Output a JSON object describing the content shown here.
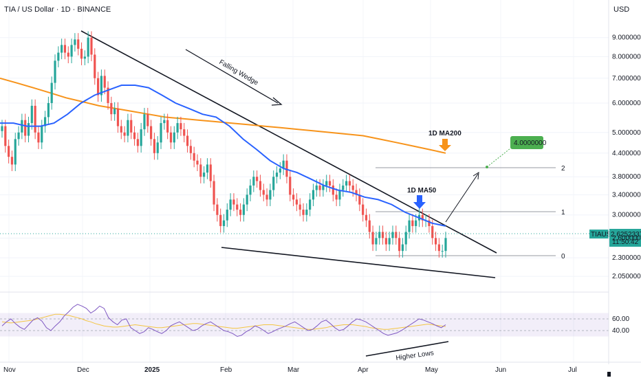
{
  "header": {
    "symbol_title": "TIA / US Dollar · 1D · BINANCE",
    "currency": "USD"
  },
  "chart_data": {
    "type": "candlestick",
    "symbol": "TIAUSD",
    "price_scale": "log",
    "ylim": [
      1.9,
      10.0
    ],
    "price_ticks": [
      "9.0000000",
      "8.0000000",
      "7.0000000",
      "6.0000000",
      "5.0000000",
      "4.4000000",
      "3.8000000",
      "3.4000000",
      "3.0000000",
      "2.6000000",
      "2.3000000",
      "2.0500000"
    ],
    "time_ticks": [
      "Nov",
      "Dec",
      "2025",
      "Feb",
      "Mar",
      "Apr",
      "May",
      "Jun",
      "Jul"
    ],
    "current_price": {
      "label": "TIAUSD",
      "value": "2.6252337",
      "countdown": "11:50:42"
    },
    "close_series": [
      5.2,
      4.6,
      4.3,
      4.1,
      4.8,
      5.0,
      5.4,
      4.9,
      5.3,
      5.9,
      5.0,
      4.7,
      5.2,
      5.5,
      6.0,
      6.8,
      7.8,
      8.2,
      8.6,
      8.2,
      8.0,
      8.6,
      8.9,
      8.4,
      7.9,
      8.0,
      9.0,
      8.1,
      7.0,
      6.3,
      7.1,
      6.6,
      6.0,
      5.6,
      5.8,
      5.2,
      5.0,
      4.9,
      5.4,
      5.0,
      4.8,
      4.6,
      5.1,
      5.6,
      5.2,
      4.8,
      4.4,
      4.7,
      5.3,
      5.4,
      5.0,
      4.7,
      5.0,
      5.3,
      5.1,
      4.9,
      4.6,
      4.4,
      4.2,
      4.1,
      3.8,
      3.9,
      4.1,
      3.7,
      3.2,
      3.0,
      2.8,
      2.9,
      3.1,
      3.3,
      3.2,
      3.1,
      3.0,
      3.2,
      3.4,
      3.6,
      3.8,
      3.7,
      3.5,
      3.4,
      3.3,
      3.5,
      3.8,
      3.9,
      4.0,
      4.2,
      3.8,
      3.4,
      3.3,
      3.2,
      3.1,
      3.0,
      3.1,
      3.3,
      3.5,
      3.6,
      3.5,
      3.6,
      3.7,
      3.6,
      3.4,
      3.3,
      3.5,
      3.6,
      3.7,
      3.6,
      3.5,
      3.4,
      3.2,
      3.0,
      2.9,
      2.7,
      2.5,
      2.6,
      2.7,
      2.6,
      2.5,
      2.6,
      2.7,
      2.6,
      2.4,
      2.5,
      2.7,
      2.9,
      2.8,
      2.9,
      3.0,
      2.9,
      2.9,
      2.8,
      2.6,
      2.5,
      2.4,
      2.4,
      2.6
    ],
    "ma200": {
      "label": "1D MA200",
      "values": [
        7.0,
        6.8,
        6.6,
        6.4,
        6.2,
        6.05,
        5.9,
        5.8,
        5.7,
        5.6,
        5.5,
        5.45,
        5.4,
        5.35,
        5.3,
        5.25,
        5.2,
        5.15,
        5.1,
        5.05,
        5.0,
        4.95,
        4.9,
        4.8,
        4.7,
        4.6,
        4.5,
        4.4
      ]
    },
    "ma50": {
      "label": "1D MA50",
      "values": [
        5.3,
        5.3,
        5.2,
        5.2,
        5.3,
        5.6,
        6.0,
        6.3,
        6.5,
        6.7,
        6.7,
        6.6,
        6.3,
        6.0,
        5.8,
        5.6,
        5.5,
        5.2,
        4.8,
        4.5,
        4.2,
        4.0,
        3.9,
        3.75,
        3.6,
        3.5,
        3.45,
        3.35,
        3.3,
        3.2,
        3.05,
        2.95,
        2.85,
        2.8
      ]
    },
    "annotations": {
      "pattern": "Falling Wedge",
      "target_label": "4.0000000",
      "levels": [
        "2",
        "1",
        "0"
      ],
      "rsi_note": "Higher Lows"
    },
    "rsi": {
      "ticks": [
        "60.00",
        "40.00"
      ],
      "values": [
        48,
        55,
        60,
        52,
        46,
        42,
        50,
        58,
        62,
        56,
        45,
        40,
        48,
        55,
        65,
        72,
        80,
        85,
        82,
        78,
        70,
        75,
        82,
        78,
        62,
        55,
        50,
        58,
        60,
        45,
        40,
        35,
        38,
        45,
        42,
        38,
        35,
        40,
        48,
        52,
        55,
        50,
        45,
        40,
        42,
        48,
        52,
        55,
        50,
        45,
        40,
        38,
        35,
        30,
        32,
        38,
        42,
        48,
        45,
        40,
        35,
        38,
        42,
        45,
        48,
        52,
        55,
        50,
        45,
        40,
        42,
        48,
        55,
        58,
        52,
        45,
        40,
        42,
        48,
        55,
        60,
        58,
        55,
        50,
        45,
        40,
        35,
        32,
        34,
        36,
        40,
        45,
        50,
        55,
        60,
        58,
        55,
        52,
        48,
        45,
        50
      ],
      "signal": [
        55,
        54,
        53,
        54,
        55,
        56,
        57,
        58,
        60,
        62,
        64,
        66,
        68,
        68,
        67,
        66,
        64,
        62,
        60,
        57,
        55,
        52,
        50,
        48,
        47,
        46,
        46,
        47,
        48,
        49,
        50,
        49,
        48,
        47,
        46,
        45,
        45,
        46,
        47,
        48,
        49,
        50,
        51,
        52,
        52,
        51,
        50,
        49,
        48,
        47,
        46,
        45,
        44,
        44,
        45,
        46,
        47,
        48,
        49,
        50,
        50,
        50,
        49,
        48,
        47,
        46,
        45,
        44,
        43,
        42,
        42,
        43,
        44,
        45,
        47,
        48,
        49,
        50,
        50,
        50,
        49,
        48,
        47,
        45,
        44,
        43,
        42,
        42,
        43,
        44,
        45,
        46,
        47,
        48,
        49,
        50,
        51,
        50,
        49,
        48,
        47
      ]
    }
  }
}
